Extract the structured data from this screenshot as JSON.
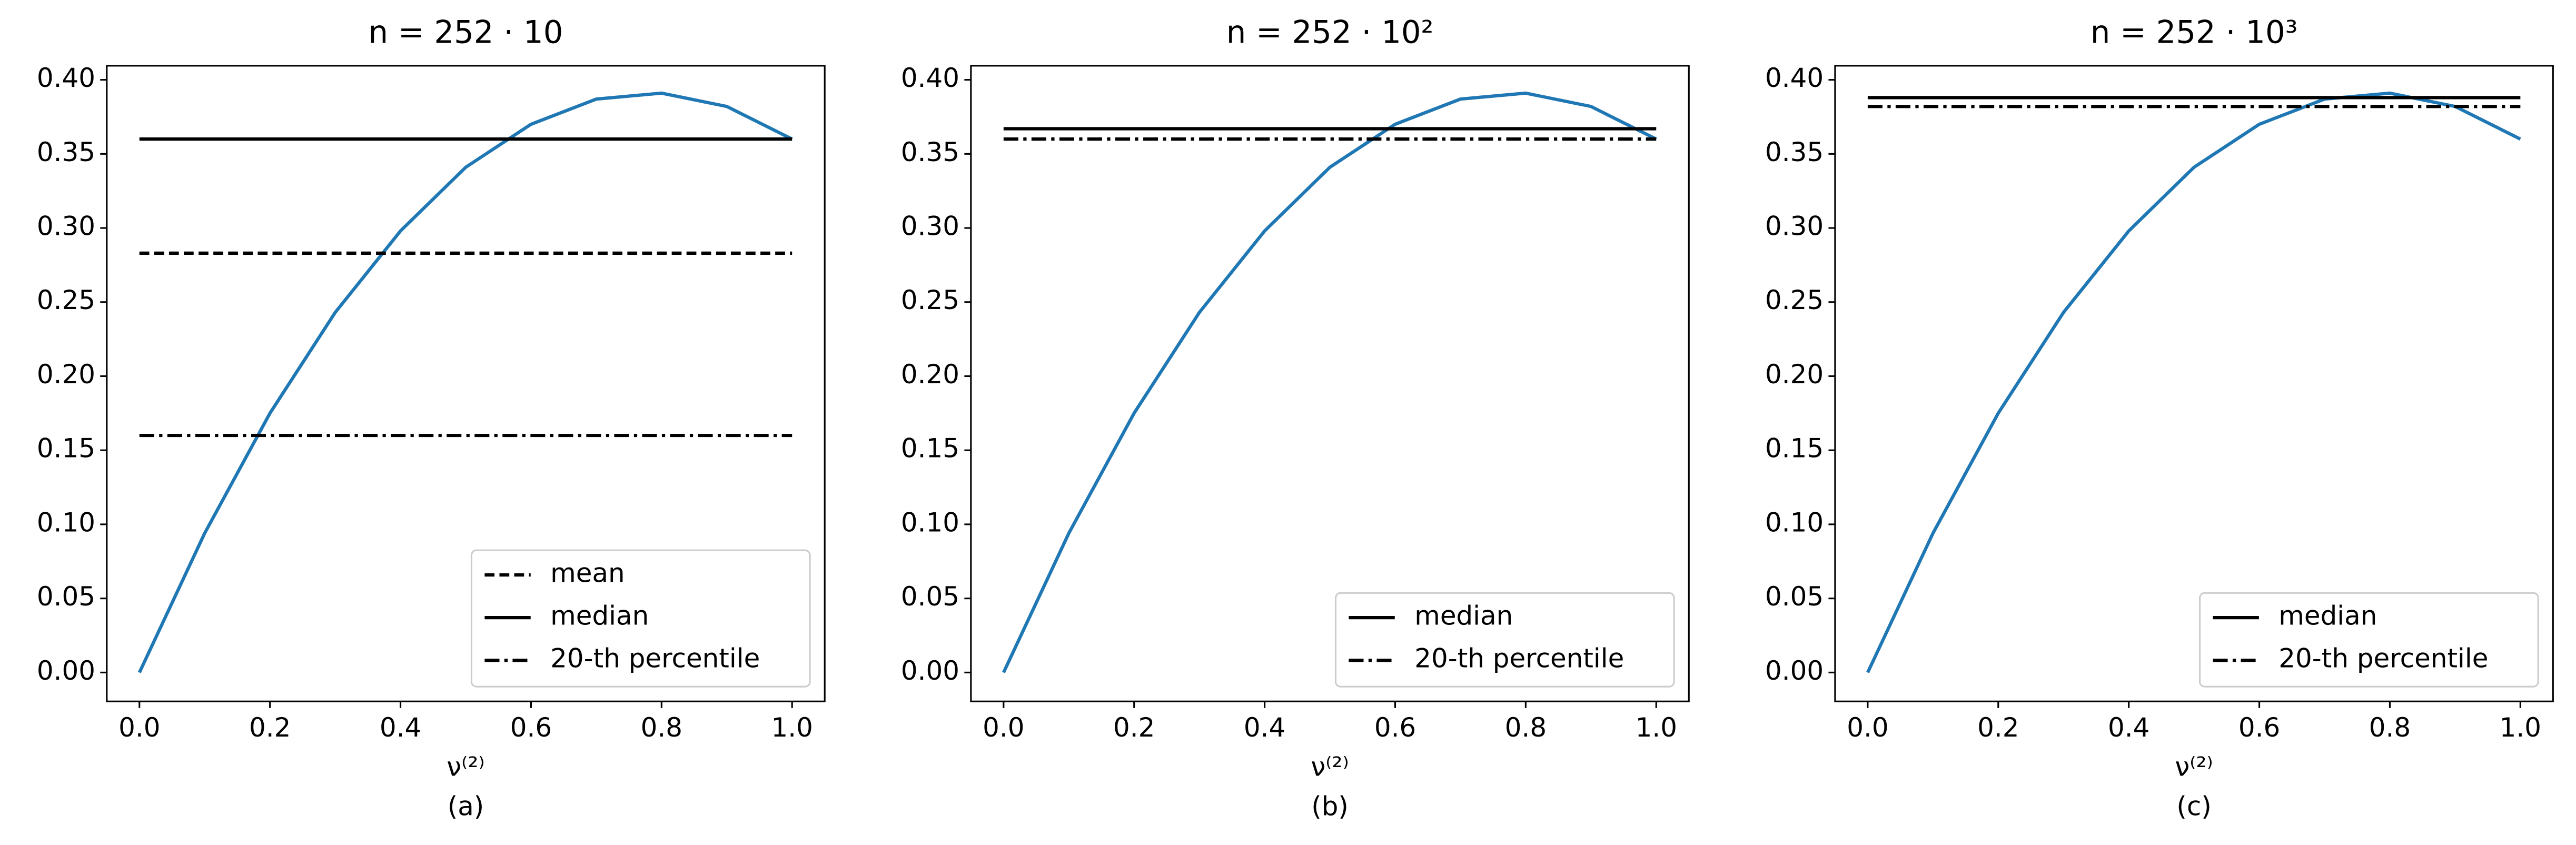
{
  "chart_data": [
    {
      "type": "line",
      "title": "n = 252 · 10",
      "xlabel": "ν⁽²⁾",
      "caption": "(a)",
      "xlim": [
        -0.05,
        1.05
      ],
      "ylim": [
        -0.0195,
        0.4095
      ],
      "xticks": [
        {
          "value": 0,
          "label": "0.0"
        },
        {
          "value": 0.2,
          "label": "0.2"
        },
        {
          "value": 0.4,
          "label": "0.4"
        },
        {
          "value": 0.6,
          "label": "0.6"
        },
        {
          "value": 0.8,
          "label": "0.8"
        },
        {
          "value": 1,
          "label": "1.0"
        }
      ],
      "yticks": [
        {
          "value": 0,
          "label": "0.00"
        },
        {
          "value": 0.05,
          "label": "0.05"
        },
        {
          "value": 0.1,
          "label": "0.10"
        },
        {
          "value": 0.15,
          "label": "0.15"
        },
        {
          "value": 0.2,
          "label": "0.20"
        },
        {
          "value": 0.25,
          "label": "0.25"
        },
        {
          "value": 0.3,
          "label": "0.30"
        },
        {
          "value": 0.35,
          "label": "0.35"
        },
        {
          "value": 0.4,
          "label": "0.40"
        }
      ],
      "legend": "lower right",
      "series": [
        {
          "color": "#1f77b4",
          "dash": "solid",
          "x": [
            0,
            0.1,
            0.2,
            0.3,
            0.4,
            0.5,
            0.6,
            0.7,
            0.8,
            0.9,
            1
          ],
          "values": [
            0,
            0.094,
            0.175,
            0.243,
            0.298,
            0.341,
            0.37,
            0.387,
            0.391,
            0.382,
            0.36
          ]
        },
        {
          "name": "mean",
          "color": "#000000",
          "dash": "dashed",
          "x": [
            0,
            1
          ],
          "values": [
            0.283,
            0.283
          ]
        },
        {
          "name": "median",
          "color": "#000000",
          "dash": "solid",
          "x": [
            0,
            1
          ],
          "values": [
            0.36,
            0.36
          ]
        },
        {
          "name": "20-th percentile",
          "color": "#000000",
          "dash": "dashdot",
          "x": [
            0,
            1
          ],
          "values": [
            0.16,
            0.16
          ]
        }
      ]
    },
    {
      "type": "line",
      "title": "n = 252 · 10²",
      "xlabel": "ν⁽²⁾",
      "caption": "(b)",
      "xlim": [
        -0.05,
        1.05
      ],
      "ylim": [
        -0.0195,
        0.4095
      ],
      "xticks": [
        {
          "value": 0,
          "label": "0.0"
        },
        {
          "value": 0.2,
          "label": "0.2"
        },
        {
          "value": 0.4,
          "label": "0.4"
        },
        {
          "value": 0.6,
          "label": "0.6"
        },
        {
          "value": 0.8,
          "label": "0.8"
        },
        {
          "value": 1,
          "label": "1.0"
        }
      ],
      "yticks": [
        {
          "value": 0,
          "label": "0.00"
        },
        {
          "value": 0.05,
          "label": "0.05"
        },
        {
          "value": 0.1,
          "label": "0.10"
        },
        {
          "value": 0.15,
          "label": "0.15"
        },
        {
          "value": 0.2,
          "label": "0.20"
        },
        {
          "value": 0.25,
          "label": "0.25"
        },
        {
          "value": 0.3,
          "label": "0.30"
        },
        {
          "value": 0.35,
          "label": "0.35"
        },
        {
          "value": 0.4,
          "label": "0.40"
        }
      ],
      "legend": "lower right",
      "series": [
        {
          "color": "#1f77b4",
          "dash": "solid",
          "x": [
            0,
            0.1,
            0.2,
            0.3,
            0.4,
            0.5,
            0.6,
            0.7,
            0.8,
            0.9,
            1
          ],
          "values": [
            0,
            0.094,
            0.175,
            0.243,
            0.298,
            0.341,
            0.37,
            0.387,
            0.391,
            0.382,
            0.36
          ]
        },
        {
          "name": "median",
          "color": "#000000",
          "dash": "solid",
          "x": [
            0,
            1
          ],
          "values": [
            0.367,
            0.367
          ]
        },
        {
          "name": "20-th percentile",
          "color": "#000000",
          "dash": "dashdot",
          "x": [
            0,
            1
          ],
          "values": [
            0.36,
            0.36
          ]
        }
      ]
    },
    {
      "type": "line",
      "title": "n = 252 · 10³",
      "xlabel": "ν⁽²⁾",
      "caption": "(c)",
      "xlim": [
        -0.05,
        1.05
      ],
      "ylim": [
        -0.0195,
        0.4095
      ],
      "xticks": [
        {
          "value": 0,
          "label": "0.0"
        },
        {
          "value": 0.2,
          "label": "0.2"
        },
        {
          "value": 0.4,
          "label": "0.4"
        },
        {
          "value": 0.6,
          "label": "0.6"
        },
        {
          "value": 0.8,
          "label": "0.8"
        },
        {
          "value": 1,
          "label": "1.0"
        }
      ],
      "yticks": [
        {
          "value": 0,
          "label": "0.00"
        },
        {
          "value": 0.05,
          "label": "0.05"
        },
        {
          "value": 0.1,
          "label": "0.10"
        },
        {
          "value": 0.15,
          "label": "0.15"
        },
        {
          "value": 0.2,
          "label": "0.20"
        },
        {
          "value": 0.25,
          "label": "0.25"
        },
        {
          "value": 0.3,
          "label": "0.30"
        },
        {
          "value": 0.35,
          "label": "0.35"
        },
        {
          "value": 0.4,
          "label": "0.40"
        }
      ],
      "legend": "lower right",
      "series": [
        {
          "color": "#1f77b4",
          "dash": "solid",
          "x": [
            0,
            0.1,
            0.2,
            0.3,
            0.4,
            0.5,
            0.6,
            0.7,
            0.8,
            0.9,
            1
          ],
          "values": [
            0,
            0.094,
            0.175,
            0.243,
            0.298,
            0.341,
            0.37,
            0.387,
            0.391,
            0.382,
            0.36
          ]
        },
        {
          "name": "median",
          "color": "#000000",
          "dash": "solid",
          "x": [
            0,
            1
          ],
          "values": [
            0.388,
            0.388
          ]
        },
        {
          "name": "20-th percentile",
          "color": "#000000",
          "dash": "dashdot",
          "x": [
            0,
            1
          ],
          "values": [
            0.382,
            0.382
          ]
        }
      ]
    }
  ]
}
